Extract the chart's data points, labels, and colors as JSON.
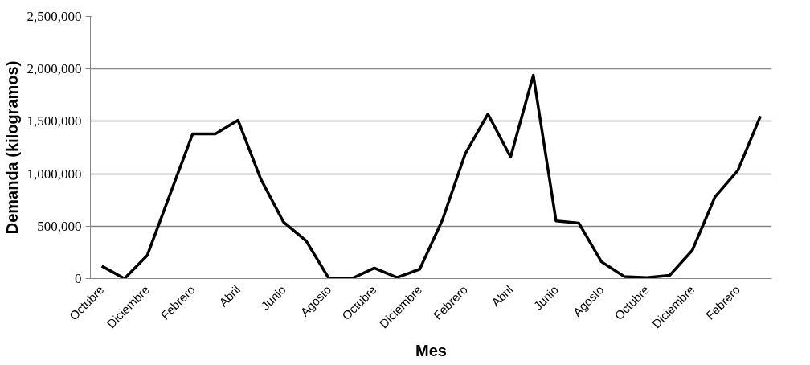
{
  "chart_data": {
    "type": "line",
    "xlabel": "Mes",
    "ylabel": "Demanda (kilogramos)",
    "categories": [
      "Octubre",
      null,
      "Diciembre",
      null,
      "Febrero",
      null,
      "Abril",
      null,
      "Junio",
      null,
      "Agosto",
      null,
      "Octubre",
      null,
      "Diciembre",
      null,
      "Febrero",
      null,
      "Abril",
      null,
      "Junio",
      null,
      "Agosto",
      null,
      "Octubre",
      null,
      "Diciembre",
      null,
      "Febrero",
      null
    ],
    "series": [
      {
        "color": "#000000",
        "values": [
          120000,
          0,
          220000,
          800000,
          1380000,
          1380000,
          1510000,
          950000,
          540000,
          360000,
          0,
          0,
          100000,
          10000,
          90000,
          560000,
          1190000,
          1570000,
          1160000,
          1940000,
          550000,
          530000,
          160000,
          20000,
          10000,
          30000,
          270000,
          780000,
          1030000,
          1550000
        ]
      }
    ],
    "ylim": [
      0,
      2500000
    ],
    "yticks": [
      {
        "value": 0,
        "label": "0"
      },
      {
        "value": 500000,
        "label": "500,000"
      },
      {
        "value": 1000000,
        "label": "1,000,000"
      },
      {
        "value": 1500000,
        "label": "1,500,000"
      },
      {
        "value": 2000000,
        "label": "2,000,000"
      },
      {
        "value": 2500000,
        "label": "2,500,000"
      }
    ],
    "grid": "y",
    "marker": "none",
    "line_style": "solid"
  }
}
